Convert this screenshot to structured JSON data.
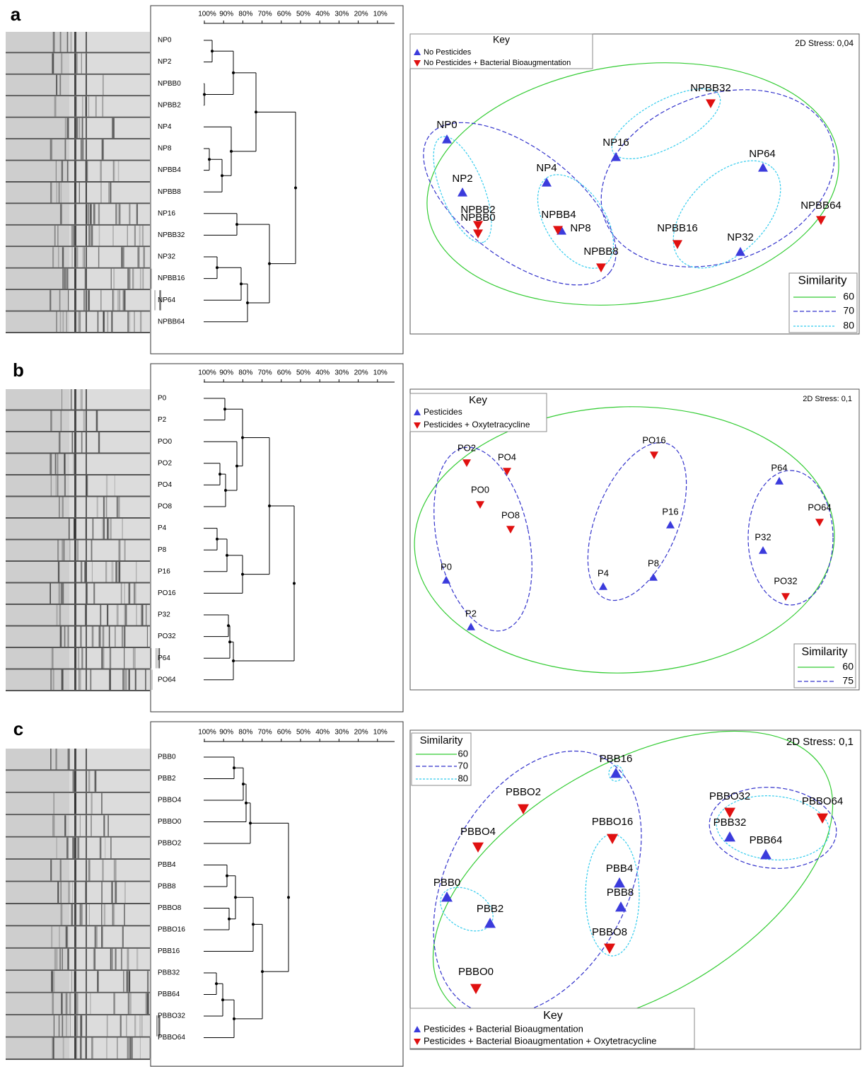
{
  "panels": [
    {
      "label": "a",
      "scale": [
        "100%",
        "90%",
        "80%",
        "70%",
        "60%",
        "50%",
        "40%",
        "30%",
        "20%",
        "10%"
      ],
      "samples": [
        "NP0",
        "NP2",
        "NPBB0",
        "NPBB2",
        "NP4",
        "NP8",
        "NPBB4",
        "NPBB8",
        "NP16",
        "NPBB32",
        "NP32",
        "NPBB16",
        "NP64",
        "NPBB64"
      ],
      "nmds": {
        "stress": "2D Stress: 0,04",
        "key_title": "Key",
        "key": [
          {
            "label": "No Pesticides",
            "color": "#3b3bdc",
            "marker": "up",
            "points": [
              "NP0",
              "NP2",
              "NP4",
              "NP8",
              "NP16",
              "NP32",
              "NP64"
            ]
          },
          {
            "label": "No Pesticides + Bacterial Bioaugmentation",
            "color": "#e01010",
            "marker": "down",
            "points": [
              "NPBB0",
              "NPBB2",
              "NPBB4",
              "NPBB8",
              "NPBB16",
              "NPBB32",
              "NPBB64"
            ]
          }
        ],
        "similarity_title": "Similarity",
        "similarity": [
          {
            "value": 60,
            "color": "#33cc33",
            "style": "solid"
          },
          {
            "value": 70,
            "color": "#3333cc",
            "style": "dashed"
          },
          {
            "value": 80,
            "color": "#33ccee",
            "style": "dotted"
          }
        ]
      }
    },
    {
      "label": "b",
      "scale": [
        "100%",
        "90%",
        "80%",
        "70%",
        "60%",
        "50%",
        "40%",
        "30%",
        "20%",
        "10%"
      ],
      "samples": [
        "P0",
        "P2",
        "PO0",
        "PO2",
        "PO4",
        "PO8",
        "P4",
        "P8",
        "P16",
        "PO16",
        "P32",
        "PO32",
        "P64",
        "PO64"
      ],
      "nmds": {
        "stress": "2D Stress: 0,1",
        "key_title": "Key",
        "key": [
          {
            "label": "Pesticides",
            "color": "#3b3bdc",
            "marker": "up",
            "points": [
              "P0",
              "P2",
              "P4",
              "P8",
              "P16",
              "P32",
              "P64"
            ]
          },
          {
            "label": "Pesticides + Oxytetracycline",
            "color": "#e01010",
            "marker": "down",
            "points": [
              "PO0",
              "PO2",
              "PO4",
              "PO8",
              "PO16",
              "PO32",
              "PO64"
            ]
          }
        ],
        "similarity_title": "Similarity",
        "similarity": [
          {
            "value": 60,
            "color": "#33cc33",
            "style": "solid"
          },
          {
            "value": 75,
            "color": "#3333cc",
            "style": "dashed"
          }
        ]
      }
    },
    {
      "label": "c",
      "scale": [
        "100%",
        "90%",
        "80%",
        "70%",
        "60%",
        "50%",
        "40%",
        "30%",
        "20%",
        "10%"
      ],
      "samples": [
        "PBB0",
        "PBB2",
        "PBBO4",
        "PBBO0",
        "PBBO2",
        "PBB4",
        "PBB8",
        "PBBO8",
        "PBBO16",
        "PBB16",
        "PBB32",
        "PBB64",
        "PBBO32",
        "PBBO64"
      ],
      "nmds": {
        "stress": "2D Stress: 0,1",
        "key_title": "Key",
        "key": [
          {
            "label": "Pesticides + Bacterial Bioaugmentation",
            "color": "#3b3bdc",
            "marker": "up",
            "points": [
              "PBB0",
              "PBB2",
              "PBB4",
              "PBB8",
              "PBB16",
              "PBB32",
              "PBB64"
            ]
          },
          {
            "label": "Pesticides + Bacterial Bioaugmentation + Oxytetracycline",
            "color": "#e01010",
            "marker": "down",
            "points": [
              "PBBO0",
              "PBBO2",
              "PBBO4",
              "PBBO8",
              "PBBO16",
              "PBBO32",
              "PBBO64"
            ]
          }
        ],
        "similarity_title": "Similarity",
        "similarity": [
          {
            "value": 60,
            "color": "#33cc33",
            "style": "solid"
          },
          {
            "value": 70,
            "color": "#3333cc",
            "style": "dashed"
          },
          {
            "value": 80,
            "color": "#33ccee",
            "style": "dotted"
          }
        ]
      }
    }
  ]
}
